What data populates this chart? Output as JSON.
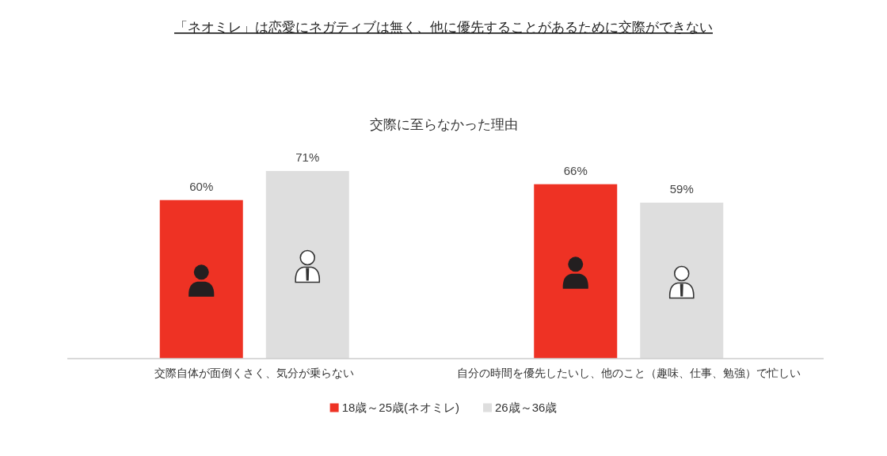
{
  "chart_data": {
    "type": "bar",
    "title": "「ネオミレ」は恋愛にネガティブは無く、他に優先することがあるために交際ができない",
    "subtitle": "交際に至らなかった理由",
    "categories": [
      "交際自体が面倒くさく、気分が乗らない",
      "自分の時間を優先したいし、他のこと（趣味、仕事、勉強）で忙しい"
    ],
    "series": [
      {
        "name": "18歳～25歳(ネオミレ)",
        "color": "#ee3224",
        "values": [
          60,
          66
        ],
        "value_labels": [
          "60%",
          "66%"
        ]
      },
      {
        "name": "26歳～36歳",
        "color": "#dedede",
        "values": [
          71,
          59
        ],
        "value_labels": [
          "71%",
          "59%"
        ]
      }
    ],
    "legend": "bottom",
    "tick_labels": "x"
  }
}
